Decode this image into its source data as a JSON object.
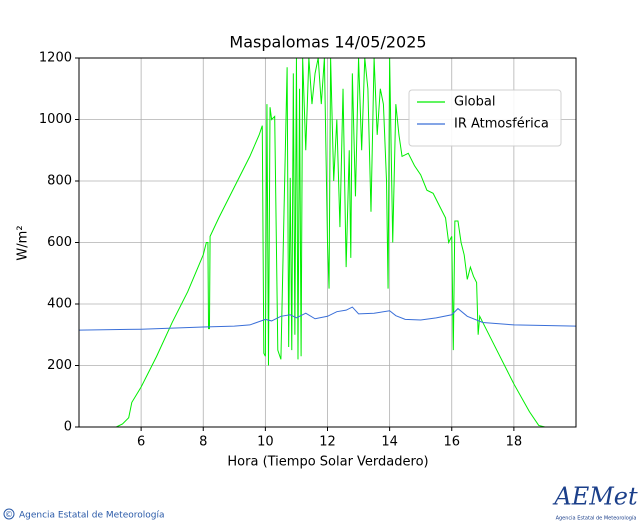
{
  "chart_data": {
    "type": "line",
    "title": "Maspalomas 14/05/2025",
    "x_label": "Hora (Tiempo Solar Verdadero)",
    "y_label": "W/m²",
    "xlim": [
      4,
      20
    ],
    "ylim": [
      0,
      1200
    ],
    "xticks": [
      6,
      8,
      10,
      12,
      14,
      16,
      18
    ],
    "yticks": [
      0,
      200,
      400,
      600,
      800,
      1000,
      1200
    ],
    "grid": true,
    "legend": "upper right",
    "series": [
      {
        "name": "Global",
        "color": "#00ee00",
        "x": [
          4.0,
          5.2,
          5.4,
          5.6,
          5.7,
          6,
          6.5,
          7,
          7.5,
          8,
          8.1,
          8.15,
          8.17,
          8.2,
          8.22,
          8.5,
          9,
          9.5,
          9.8,
          9.9,
          9.95,
          10.0,
          10.05,
          10.1,
          10.15,
          10.2,
          10.3,
          10.4,
          10.5,
          10.6,
          10.7,
          10.75,
          10.8,
          10.85,
          10.9,
          10.95,
          11.0,
          11.05,
          11.1,
          11.15,
          11.2,
          11.3,
          11.4,
          11.5,
          11.6,
          11.7,
          11.8,
          11.9,
          12.0,
          12.05,
          12.1,
          12.2,
          12.3,
          12.4,
          12.5,
          12.6,
          12.7,
          12.75,
          12.8,
          12.9,
          13.0,
          13.1,
          13.2,
          13.3,
          13.4,
          13.5,
          13.6,
          13.7,
          13.8,
          13.9,
          13.95,
          14.0,
          14.1,
          14.2,
          14.3,
          14.4,
          14.6,
          14.8,
          15.0,
          15.2,
          15.4,
          15.6,
          15.8,
          15.9,
          16.0,
          16.05,
          16.1,
          16.2,
          16.3,
          16.4,
          16.5,
          16.6,
          16.7,
          16.8,
          16.85,
          16.9,
          17.0,
          17.5,
          18.0,
          18.5,
          18.8,
          19.0,
          20
        ],
        "values": [
          0,
          0,
          10,
          30,
          80,
          130,
          230,
          340,
          440,
          560,
          600,
          600,
          320,
          320,
          620,
          680,
          780,
          880,
          950,
          980,
          240,
          230,
          1050,
          200,
          1040,
          1000,
          1010,
          250,
          220,
          700,
          1170,
          260,
          810,
          250,
          1150,
          300,
          1200,
          220,
          1100,
          230,
          1200,
          900,
          1200,
          1050,
          1150,
          1200,
          1050,
          1200,
          600,
          450,
          1200,
          800,
          1000,
          650,
          1100,
          520,
          900,
          550,
          1150,
          750,
          1200,
          900,
          1200,
          1100,
          700,
          1200,
          950,
          1100,
          1050,
          800,
          450,
          1200,
          600,
          1050,
          950,
          880,
          890,
          850,
          820,
          770,
          760,
          720,
          680,
          600,
          620,
          250,
          670,
          670,
          600,
          560,
          480,
          520,
          490,
          470,
          300,
          360,
          340,
          240,
          140,
          50,
          5,
          0,
          0
        ]
      },
      {
        "name": "IR Atmosférica",
        "color": "#3a6fd8",
        "x": [
          4,
          6,
          8,
          9,
          9.5,
          10,
          10.2,
          10.5,
          10.8,
          11,
          11.3,
          11.6,
          12,
          12.3,
          12.6,
          12.8,
          13,
          13.5,
          14,
          14.2,
          14.5,
          15,
          15.5,
          16,
          16.2,
          16.5,
          17,
          18,
          19,
          20
        ],
        "values": [
          315,
          318,
          325,
          328,
          332,
          350,
          345,
          360,
          365,
          355,
          370,
          352,
          360,
          375,
          380,
          390,
          368,
          370,
          378,
          362,
          350,
          348,
          355,
          365,
          385,
          360,
          340,
          332,
          330,
          328
        ]
      }
    ]
  },
  "footer": {
    "agency": "Agencia Estatal de Meteorología",
    "logo": "AEMet",
    "logo_caption": "Agencia Estatal de Meteorología",
    "copyright": "©"
  }
}
